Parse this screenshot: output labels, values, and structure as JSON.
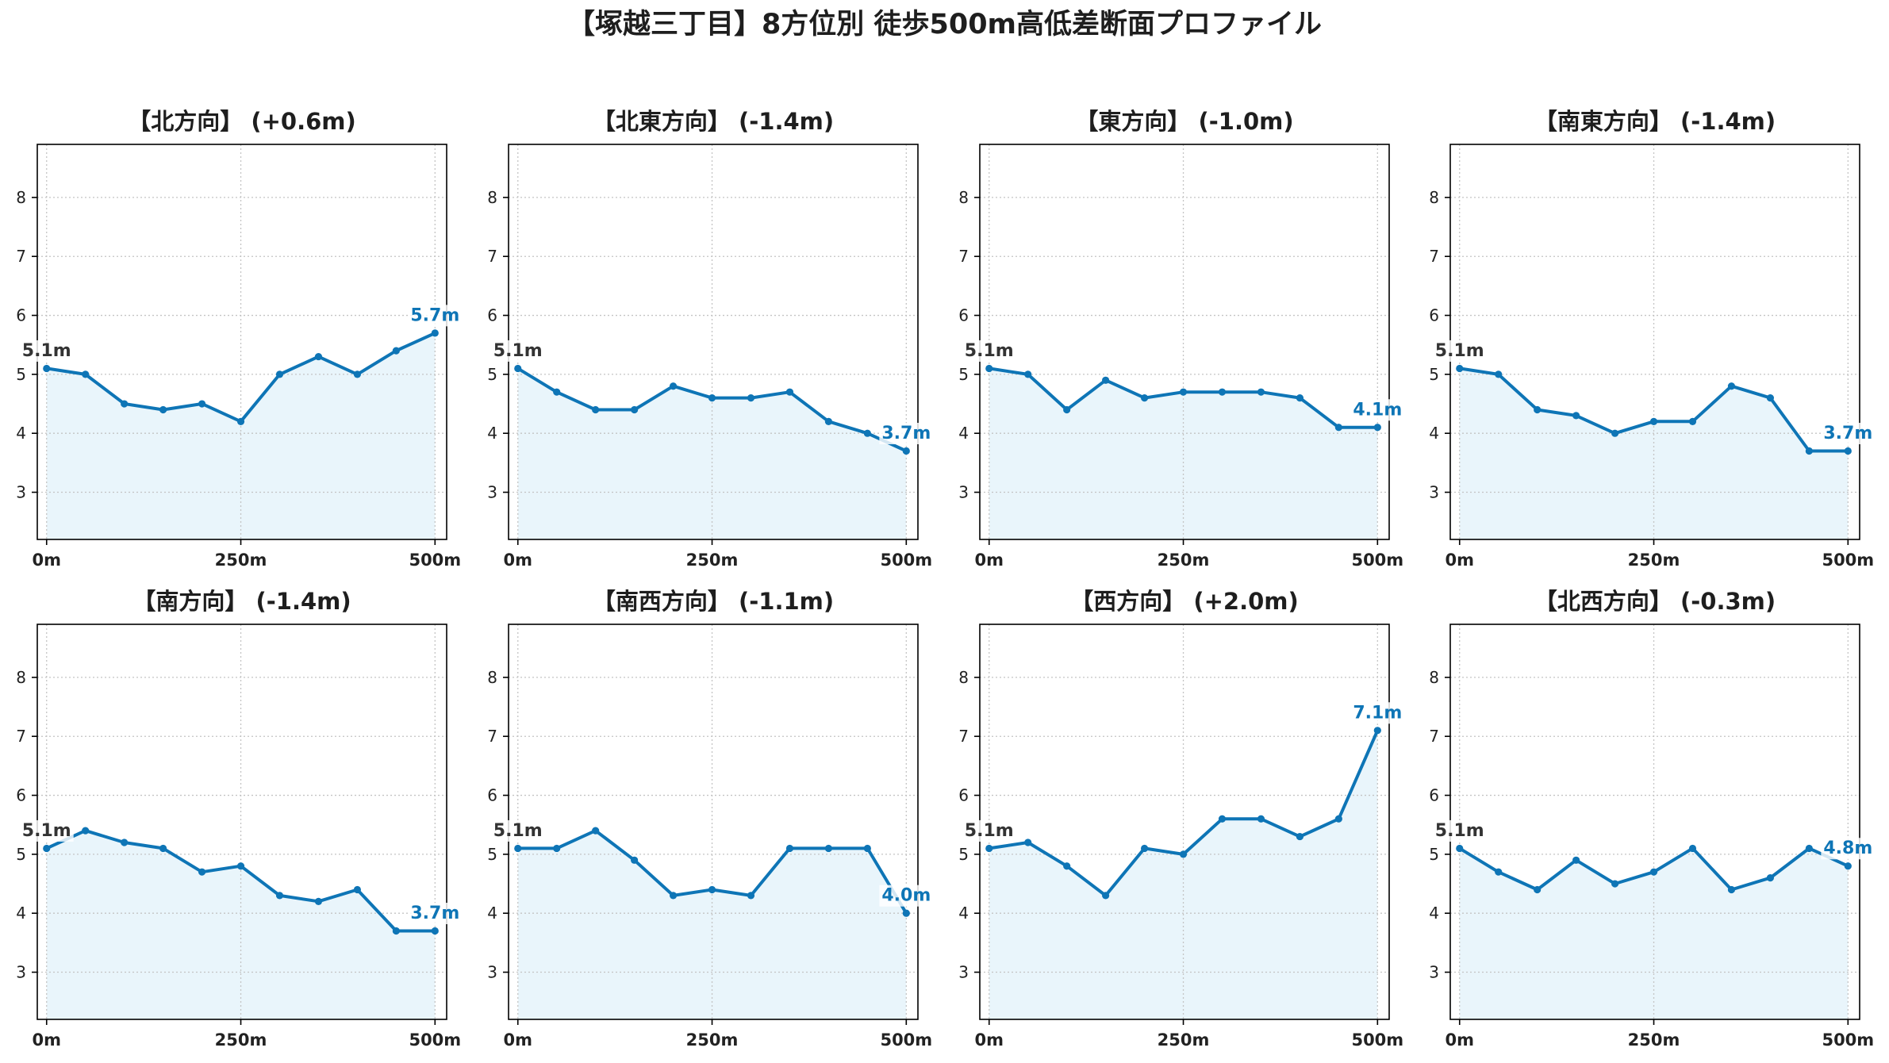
{
  "title": "【塚越三丁目】8方位別 徒歩500m高低差断面プロファイル",
  "colors": {
    "line": "#0e75b6",
    "fill": "#e9f5fb",
    "grid": "#c4c4c4",
    "start_label": "#333333",
    "end_label": "#0e75b6"
  },
  "chart_data": [
    {
      "type": "line",
      "title": "【北方向】 (+0.6m)",
      "x": [
        0,
        50,
        100,
        150,
        200,
        250,
        300,
        350,
        400,
        450,
        500
      ],
      "y": [
        5.1,
        5.0,
        4.5,
        4.4,
        4.5,
        4.2,
        5.0,
        5.3,
        5.0,
        5.4,
        5.7
      ],
      "xticks": [
        0,
        250,
        500
      ],
      "xtick_labels": [
        "0m",
        "250m",
        "500m"
      ],
      "yticks": [
        3,
        4,
        5,
        6,
        7,
        8
      ],
      "xlim": [
        -12,
        515
      ],
      "ylim": [
        2.2,
        8.9
      ],
      "grid": true,
      "start_label": "5.1m",
      "end_label": "5.7m"
    },
    {
      "type": "line",
      "title": "【北東方向】 (-1.4m)",
      "x": [
        0,
        50,
        100,
        150,
        200,
        250,
        300,
        350,
        400,
        450,
        500
      ],
      "y": [
        5.1,
        4.7,
        4.4,
        4.4,
        4.8,
        4.6,
        4.6,
        4.7,
        4.2,
        4.0,
        3.7
      ],
      "xticks": [
        0,
        250,
        500
      ],
      "xtick_labels": [
        "0m",
        "250m",
        "500m"
      ],
      "yticks": [
        3,
        4,
        5,
        6,
        7,
        8
      ],
      "xlim": [
        -12,
        515
      ],
      "ylim": [
        2.2,
        8.9
      ],
      "grid": true,
      "start_label": "5.1m",
      "end_label": "3.7m"
    },
    {
      "type": "line",
      "title": "【東方向】 (-1.0m)",
      "x": [
        0,
        50,
        100,
        150,
        200,
        250,
        300,
        350,
        400,
        450,
        500
      ],
      "y": [
        5.1,
        5.0,
        4.4,
        4.9,
        4.6,
        4.7,
        4.7,
        4.7,
        4.6,
        4.1,
        4.1
      ],
      "xticks": [
        0,
        250,
        500
      ],
      "xtick_labels": [
        "0m",
        "250m",
        "500m"
      ],
      "yticks": [
        3,
        4,
        5,
        6,
        7,
        8
      ],
      "xlim": [
        -12,
        515
      ],
      "ylim": [
        2.2,
        8.9
      ],
      "grid": true,
      "start_label": "5.1m",
      "end_label": "4.1m"
    },
    {
      "type": "line",
      "title": "【南東方向】 (-1.4m)",
      "x": [
        0,
        50,
        100,
        150,
        200,
        250,
        300,
        350,
        400,
        450,
        500
      ],
      "y": [
        5.1,
        5.0,
        4.4,
        4.3,
        4.0,
        4.2,
        4.2,
        4.8,
        4.6,
        3.7,
        3.7
      ],
      "xticks": [
        0,
        250,
        500
      ],
      "xtick_labels": [
        "0m",
        "250m",
        "500m"
      ],
      "yticks": [
        3,
        4,
        5,
        6,
        7,
        8
      ],
      "xlim": [
        -12,
        515
      ],
      "ylim": [
        2.2,
        8.9
      ],
      "grid": true,
      "start_label": "5.1m",
      "end_label": "3.7m"
    },
    {
      "type": "line",
      "title": "【南方向】 (-1.4m)",
      "x": [
        0,
        50,
        100,
        150,
        200,
        250,
        300,
        350,
        400,
        450,
        500
      ],
      "y": [
        5.1,
        5.4,
        5.2,
        5.1,
        4.7,
        4.8,
        4.3,
        4.2,
        4.4,
        3.7,
        3.7
      ],
      "xticks": [
        0,
        250,
        500
      ],
      "xtick_labels": [
        "0m",
        "250m",
        "500m"
      ],
      "yticks": [
        3,
        4,
        5,
        6,
        7,
        8
      ],
      "xlim": [
        -12,
        515
      ],
      "ylim": [
        2.2,
        8.9
      ],
      "grid": true,
      "start_label": "5.1m",
      "end_label": "3.7m"
    },
    {
      "type": "line",
      "title": "【南西方向】 (-1.1m)",
      "x": [
        0,
        50,
        100,
        150,
        200,
        250,
        300,
        350,
        400,
        450,
        500
      ],
      "y": [
        5.1,
        5.1,
        5.4,
        4.9,
        4.3,
        4.4,
        4.3,
        5.1,
        5.1,
        5.1,
        4.0
      ],
      "xticks": [
        0,
        250,
        500
      ],
      "xtick_labels": [
        "0m",
        "250m",
        "500m"
      ],
      "yticks": [
        3,
        4,
        5,
        6,
        7,
        8
      ],
      "xlim": [
        -12,
        515
      ],
      "ylim": [
        2.2,
        8.9
      ],
      "grid": true,
      "start_label": "5.1m",
      "end_label": "4.0m"
    },
    {
      "type": "line",
      "title": "【西方向】 (+2.0m)",
      "x": [
        0,
        50,
        100,
        150,
        200,
        250,
        300,
        350,
        400,
        450,
        500
      ],
      "y": [
        5.1,
        5.2,
        4.8,
        4.3,
        5.1,
        5.0,
        5.6,
        5.6,
        5.3,
        5.6,
        7.1
      ],
      "xticks": [
        0,
        250,
        500
      ],
      "xtick_labels": [
        "0m",
        "250m",
        "500m"
      ],
      "yticks": [
        3,
        4,
        5,
        6,
        7,
        8
      ],
      "xlim": [
        -12,
        515
      ],
      "ylim": [
        2.2,
        8.9
      ],
      "grid": true,
      "start_label": "5.1m",
      "end_label": "7.1m"
    },
    {
      "type": "line",
      "title": "【北西方向】 (-0.3m)",
      "x": [
        0,
        50,
        100,
        150,
        200,
        250,
        300,
        350,
        400,
        450,
        500
      ],
      "y": [
        5.1,
        4.7,
        4.4,
        4.9,
        4.5,
        4.7,
        5.1,
        4.4,
        4.6,
        5.1,
        4.8
      ],
      "xticks": [
        0,
        250,
        500
      ],
      "xtick_labels": [
        "0m",
        "250m",
        "500m"
      ],
      "yticks": [
        3,
        4,
        5,
        6,
        7,
        8
      ],
      "xlim": [
        -12,
        515
      ],
      "ylim": [
        2.2,
        8.9
      ],
      "grid": true,
      "start_label": "5.1m",
      "end_label": "4.8m"
    }
  ]
}
